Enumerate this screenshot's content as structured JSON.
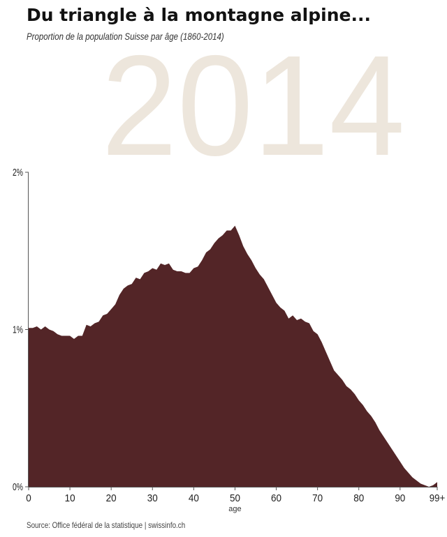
{
  "header": {
    "title": "Du triangle à la montagne alpine...",
    "subtitle": "Proportion de la population Suisse par âge (1860-2014)"
  },
  "year_watermark": "2014",
  "source": "Source: Office fédéral de la statistique | swissinfo.ch",
  "colors": {
    "area": "#532527",
    "watermark": "#ede6dc",
    "axis": "#555555"
  },
  "chart_data": {
    "type": "area",
    "xlabel": "age",
    "ylabel": "",
    "xlim": [
      0,
      99
    ],
    "ylim": [
      0,
      2
    ],
    "x_ticks": [
      0,
      10,
      20,
      30,
      40,
      50,
      60,
      70,
      80,
      90,
      99
    ],
    "x_tick_labels": [
      "0",
      "10",
      "20",
      "30",
      "40",
      "50",
      "60",
      "70",
      "80",
      "90",
      "99+"
    ],
    "y_ticks": [
      0,
      1,
      2
    ],
    "y_tick_labels": [
      "0%",
      "1%",
      "2%"
    ],
    "x": [
      0,
      1,
      2,
      3,
      4,
      5,
      6,
      7,
      8,
      9,
      10,
      11,
      12,
      13,
      14,
      15,
      16,
      17,
      18,
      19,
      20,
      21,
      22,
      23,
      24,
      25,
      26,
      27,
      28,
      29,
      30,
      31,
      32,
      33,
      34,
      35,
      36,
      37,
      38,
      39,
      40,
      41,
      42,
      43,
      44,
      45,
      46,
      47,
      48,
      49,
      50,
      51,
      52,
      53,
      54,
      55,
      56,
      57,
      58,
      59,
      60,
      61,
      62,
      63,
      64,
      65,
      66,
      67,
      68,
      69,
      70,
      71,
      72,
      73,
      74,
      75,
      76,
      77,
      78,
      79,
      80,
      81,
      82,
      83,
      84,
      85,
      86,
      87,
      88,
      89,
      90,
      91,
      92,
      93,
      94,
      95,
      96,
      97,
      98,
      99
    ],
    "values": [
      1.01,
      1.01,
      1.02,
      1.0,
      1.02,
      1.0,
      0.99,
      0.97,
      0.96,
      0.96,
      0.96,
      0.94,
      0.96,
      0.96,
      1.03,
      1.02,
      1.04,
      1.05,
      1.09,
      1.1,
      1.13,
      1.16,
      1.22,
      1.26,
      1.28,
      1.29,
      1.33,
      1.32,
      1.36,
      1.37,
      1.39,
      1.38,
      1.42,
      1.41,
      1.42,
      1.38,
      1.37,
      1.37,
      1.36,
      1.36,
      1.39,
      1.4,
      1.44,
      1.49,
      1.51,
      1.55,
      1.58,
      1.6,
      1.63,
      1.63,
      1.66,
      1.6,
      1.53,
      1.48,
      1.44,
      1.39,
      1.35,
      1.32,
      1.27,
      1.22,
      1.17,
      1.14,
      1.12,
      1.07,
      1.09,
      1.06,
      1.07,
      1.05,
      1.04,
      0.99,
      0.97,
      0.92,
      0.86,
      0.8,
      0.74,
      0.71,
      0.68,
      0.64,
      0.62,
      0.59,
      0.55,
      0.52,
      0.48,
      0.45,
      0.41,
      0.36,
      0.32,
      0.28,
      0.24,
      0.2,
      0.16,
      0.12,
      0.09,
      0.06,
      0.04,
      0.02,
      0.01,
      0.0,
      0.01,
      0.03
    ]
  }
}
